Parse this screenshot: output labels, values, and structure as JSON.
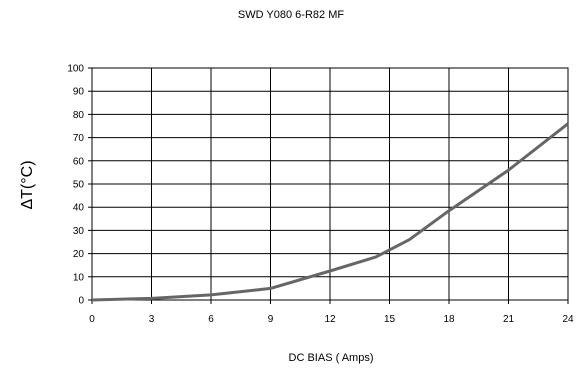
{
  "chart_data": {
    "type": "line",
    "title": "SWD Y080 6-R82 MF",
    "xlabel": "DC BIAS ( Amps)",
    "ylabel": "ΔT(°C)",
    "xlim": [
      0,
      24
    ],
    "ylim": [
      0,
      100
    ],
    "xticks": [
      "0",
      "3",
      "6",
      "9",
      "12",
      "15",
      "18",
      "21",
      "24"
    ],
    "yticks": [
      "0",
      "10",
      "20",
      "30",
      "40",
      "50",
      "60",
      "70",
      "80",
      "90",
      "100"
    ],
    "grid": true,
    "colors": {
      "line": "#666666",
      "grid": "#000000"
    },
    "series": [
      {
        "x": [
          0,
          3,
          6,
          9,
          12,
          14.3,
          16,
          18,
          21,
          24
        ],
        "y": [
          0,
          0.7,
          2.2,
          5,
          12.5,
          18.5,
          26,
          38.5,
          56,
          76
        ]
      }
    ]
  }
}
